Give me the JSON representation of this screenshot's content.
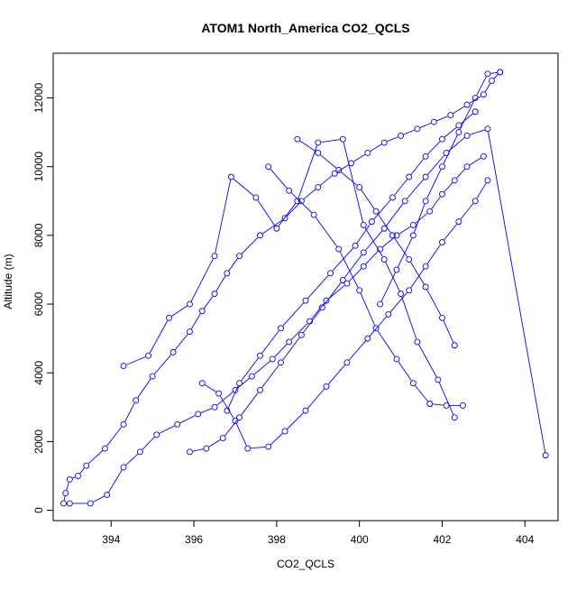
{
  "chart_data": {
    "type": "line",
    "title": "ATOM1 North_America CO2_QCLS",
    "xlabel": "CO2_QCLS",
    "ylabel": "Altitude (m)",
    "xlim": [
      392.6,
      404.8
    ],
    "ylim": [
      -300,
      13300
    ],
    "x_ticks": [
      394,
      396,
      398,
      400,
      402,
      404
    ],
    "y_ticks": [
      0,
      2000,
      4000,
      6000,
      8000,
      10000,
      12000
    ],
    "grid": false,
    "legend": "none",
    "series_color": "#0000ff",
    "marker": "open-circle",
    "series": [
      {
        "x": [
          392.85,
          392.9,
          393.0,
          393.2,
          393.4,
          393.85,
          394.3,
          394.6,
          395.0,
          395.5,
          395.9,
          396.2,
          396.5,
          396.8,
          397.1,
          397.6,
          398.2,
          398.6,
          399.0,
          399.4,
          399.8,
          400.2,
          400.6,
          401.0,
          401.4,
          401.8,
          402.2,
          402.6,
          403.0,
          403.2,
          403.4
        ],
        "y": [
          200,
          500,
          900,
          1000,
          1300,
          1800,
          2500,
          3200,
          3900,
          4600,
          5200,
          5800,
          6300,
          6900,
          7400,
          8000,
          8500,
          9000,
          9400,
          9800,
          10100,
          10400,
          10700,
          10900,
          11100,
          11300,
          11500,
          11800,
          12100,
          12500,
          12750
        ]
      },
      {
        "x": [
          393.0,
          393.5,
          393.9,
          394.3,
          394.7,
          395.1,
          395.6,
          396.1,
          396.5,
          397.0,
          397.4,
          397.9,
          398.3,
          398.8,
          399.2,
          399.7,
          400.1,
          400.5,
          400.9,
          401.3,
          401.7,
          402.0,
          402.3,
          402.6,
          403.0
        ],
        "y": [
          200,
          200,
          450,
          1250,
          1700,
          2200,
          2500,
          2800,
          3000,
          3500,
          3900,
          4400,
          4900,
          5500,
          6100,
          6600,
          7100,
          7600,
          8000,
          8300,
          8700,
          9200,
          9600,
          10000,
          10300
        ]
      },
      {
        "x": [
          394.3,
          394.9,
          395.4,
          395.9,
          396.5,
          396.9,
          397.5,
          398.0,
          398.5,
          399.0,
          399.6,
          400.1,
          400.6,
          401.0,
          401.4,
          401.9,
          402.3
        ],
        "y": [
          4200,
          4500,
          5600,
          6000,
          7400,
          9700,
          9100,
          8200,
          9000,
          10700,
          10800,
          8300,
          7300,
          6300,
          4900,
          3800,
          2700
        ]
      },
      {
        "x": [
          395.9,
          396.3,
          396.7,
          397.1,
          397.6,
          398.1,
          398.6,
          399.1,
          399.6,
          400.1,
          400.6,
          401.1,
          401.6,
          402.1,
          402.6,
          403.1,
          404.5
        ],
        "y": [
          1700,
          1800,
          2100,
          2700,
          3500,
          4300,
          5100,
          5900,
          6700,
          7500,
          8200,
          9000,
          9700,
          10400,
          10900,
          11100,
          1600
        ]
      },
      {
        "x": [
          396.2,
          396.6,
          397.0,
          397.3,
          397.8,
          398.2,
          398.7,
          399.2,
          399.7,
          400.2,
          400.7,
          401.2,
          401.6,
          402.0,
          402.4,
          402.8,
          403.1
        ],
        "y": [
          3700,
          3400,
          2600,
          1800,
          1850,
          2300,
          2900,
          3600,
          4300,
          5000,
          5700,
          6400,
          7100,
          7800,
          8400,
          9000,
          9600
        ]
      },
      {
        "x": [
          396.8,
          397.1,
          397.6,
          398.1,
          398.7,
          399.3,
          399.9,
          400.3,
          400.8,
          401.2,
          401.6,
          402.0,
          402.4,
          402.8
        ],
        "y": [
          2900,
          3700,
          4500,
          5300,
          6100,
          6900,
          7700,
          8400,
          9100,
          9700,
          10300,
          10800,
          11200,
          11600
        ]
      },
      {
        "x": [
          397.8,
          398.3,
          398.9,
          399.5,
          400.0,
          400.4,
          400.9,
          401.3,
          401.7,
          402.1,
          402.5
        ],
        "y": [
          10000,
          9300,
          8600,
          7600,
          6400,
          5300,
          4400,
          3700,
          3100,
          3050,
          3050
        ]
      },
      {
        "x": [
          398.5,
          399.0,
          399.5,
          400.0,
          400.4,
          400.8,
          401.2,
          401.6,
          402.0,
          402.3
        ],
        "y": [
          10800,
          10400,
          9900,
          9400,
          8700,
          8000,
          7300,
          6500,
          5600,
          4800
        ]
      },
      {
        "x": [
          400.5,
          400.9,
          401.3,
          401.6,
          402.0,
          402.4,
          402.8,
          403.1,
          403.4
        ],
        "y": [
          6000,
          7000,
          8000,
          9000,
          10000,
          11000,
          12000,
          12700,
          12750
        ]
      }
    ]
  }
}
